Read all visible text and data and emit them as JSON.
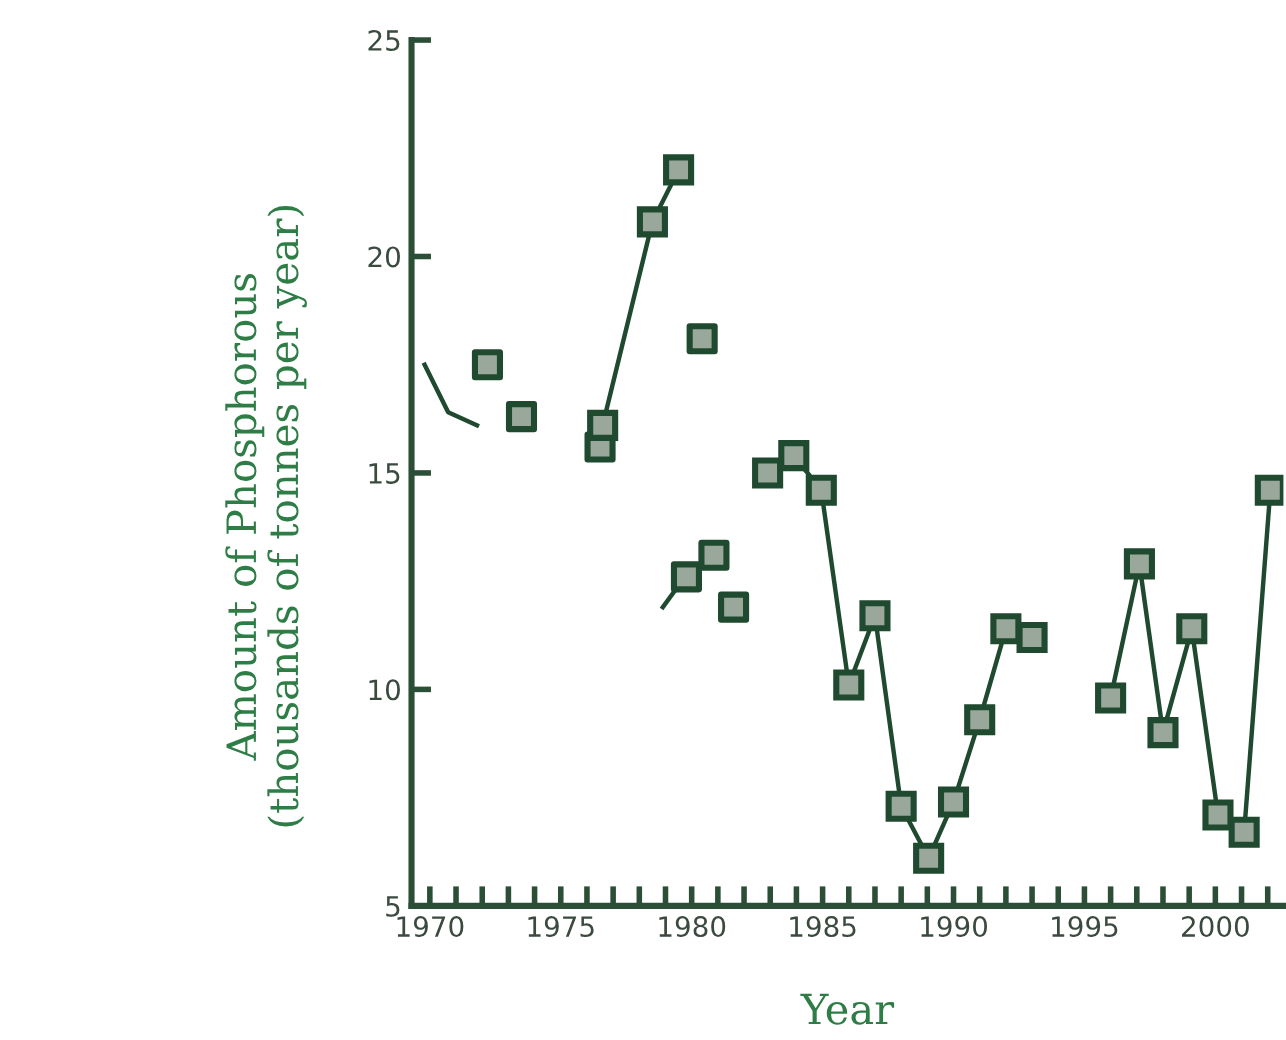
{
  "chart_data": {
    "type": "line",
    "xlabel": "Year",
    "ylabel": "Amount of Phosphorous\n(thousands of tonnes per year)",
    "xlim": [
      1969.3,
      2002.6
    ],
    "ylim": [
      5,
      25
    ],
    "xticks": [
      1970,
      {
        "value": 1971,
        "label": null
      },
      {
        "value": 1972,
        "label": null
      },
      {
        "value": 1973,
        "label": null
      },
      {
        "value": 1974,
        "label": null
      },
      1975,
      {
        "value": 1976,
        "label": null
      },
      {
        "value": 1977,
        "label": null
      },
      {
        "value": 1978,
        "label": null
      },
      {
        "value": 1979,
        "label": null
      },
      1980,
      {
        "value": 1981,
        "label": null
      },
      {
        "value": 1982,
        "label": null
      },
      {
        "value": 1983,
        "label": null
      },
      {
        "value": 1984,
        "label": null
      },
      1985,
      {
        "value": 1986,
        "label": null
      },
      {
        "value": 1987,
        "label": null
      },
      {
        "value": 1988,
        "label": null
      },
      {
        "value": 1989,
        "label": null
      },
      1990,
      {
        "value": 1991,
        "label": null
      },
      {
        "value": 1992,
        "label": null
      },
      {
        "value": 1993,
        "label": null
      },
      {
        "value": 1994,
        "label": null
      },
      1995,
      {
        "value": 1996,
        "label": null
      },
      {
        "value": 1997,
        "label": null
      },
      {
        "value": 1998,
        "label": null
      },
      {
        "value": 1999,
        "label": null
      },
      2000,
      {
        "value": 2001,
        "label": null
      },
      {
        "value": 2002,
        "label": null
      }
    ],
    "yticks": [
      5,
      10,
      15,
      20,
      25
    ],
    "grid": false,
    "legend": false,
    "series": [
      {
        "marker": "none",
        "color": "#1f4a2f",
        "x": [
          1969.8,
          1970.7,
          1971.8
        ],
        "values": [
          17.5,
          16.4,
          16.1
        ]
      },
      {
        "type": "scatter",
        "marker": "square",
        "color": "#1f4a2f",
        "x": [
          1972.2,
          1973.5,
          1976.5,
          1980.4,
          1981.6
        ],
        "values": [
          17.5,
          16.3,
          15.6,
          18.1,
          11.9
        ]
      },
      {
        "marker": "square",
        "color": "#1f4a2f",
        "x": [
          1976.6,
          1978.5,
          1979.5
        ],
        "values": [
          16.1,
          20.8,
          22.0
        ]
      },
      {
        "marker": "none",
        "color": "#1f4a2f",
        "x": [
          1978.9,
          1979.5
        ],
        "values": [
          11.9,
          12.4
        ]
      },
      {
        "type": "scatter",
        "marker": "square",
        "color": "#1f4a2f",
        "x": [
          1979.8,
          1980.85
        ],
        "values": [
          12.6,
          13.1
        ]
      },
      {
        "marker": "square",
        "color": "#1f4a2f",
        "x": [
          1982.9,
          1983.9,
          1984.95,
          1986.0,
          1987.0,
          1988.0,
          1989.05,
          1990.0,
          1991.0,
          1992.0,
          1993.0
        ],
        "values": [
          15.0,
          15.4,
          14.6,
          10.1,
          11.7,
          7.3,
          6.1,
          7.4,
          9.3,
          11.4,
          11.2
        ]
      },
      {
        "marker": "square",
        "color": "#1f4a2f",
        "x": [
          1996.0,
          1997.1,
          1998.0,
          1999.1,
          2000.1,
          2001.1,
          2002.1
        ],
        "values": [
          9.8,
          12.9,
          9.0,
          11.4,
          7.1,
          6.7,
          14.6
        ]
      }
    ]
  }
}
